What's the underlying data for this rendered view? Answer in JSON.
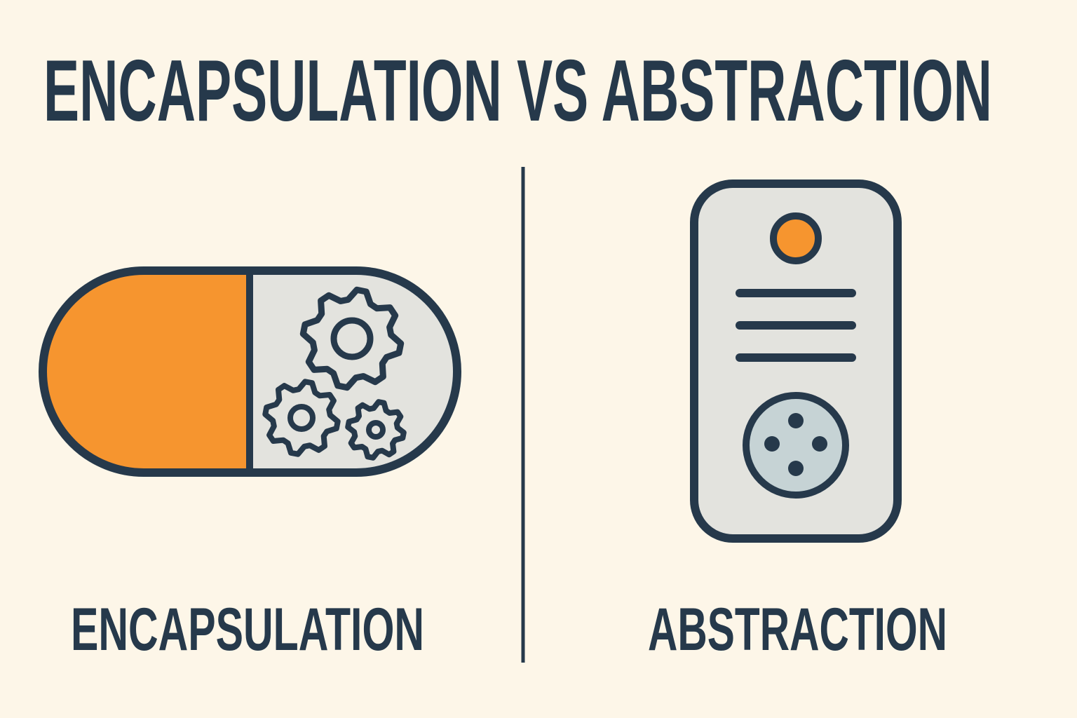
{
  "title": "ENCAPSULATION VS ABSTRACTION",
  "panels": [
    {
      "label": "ENCAPSULATION"
    },
    {
      "label": "ABSTRACTION"
    }
  ]
}
